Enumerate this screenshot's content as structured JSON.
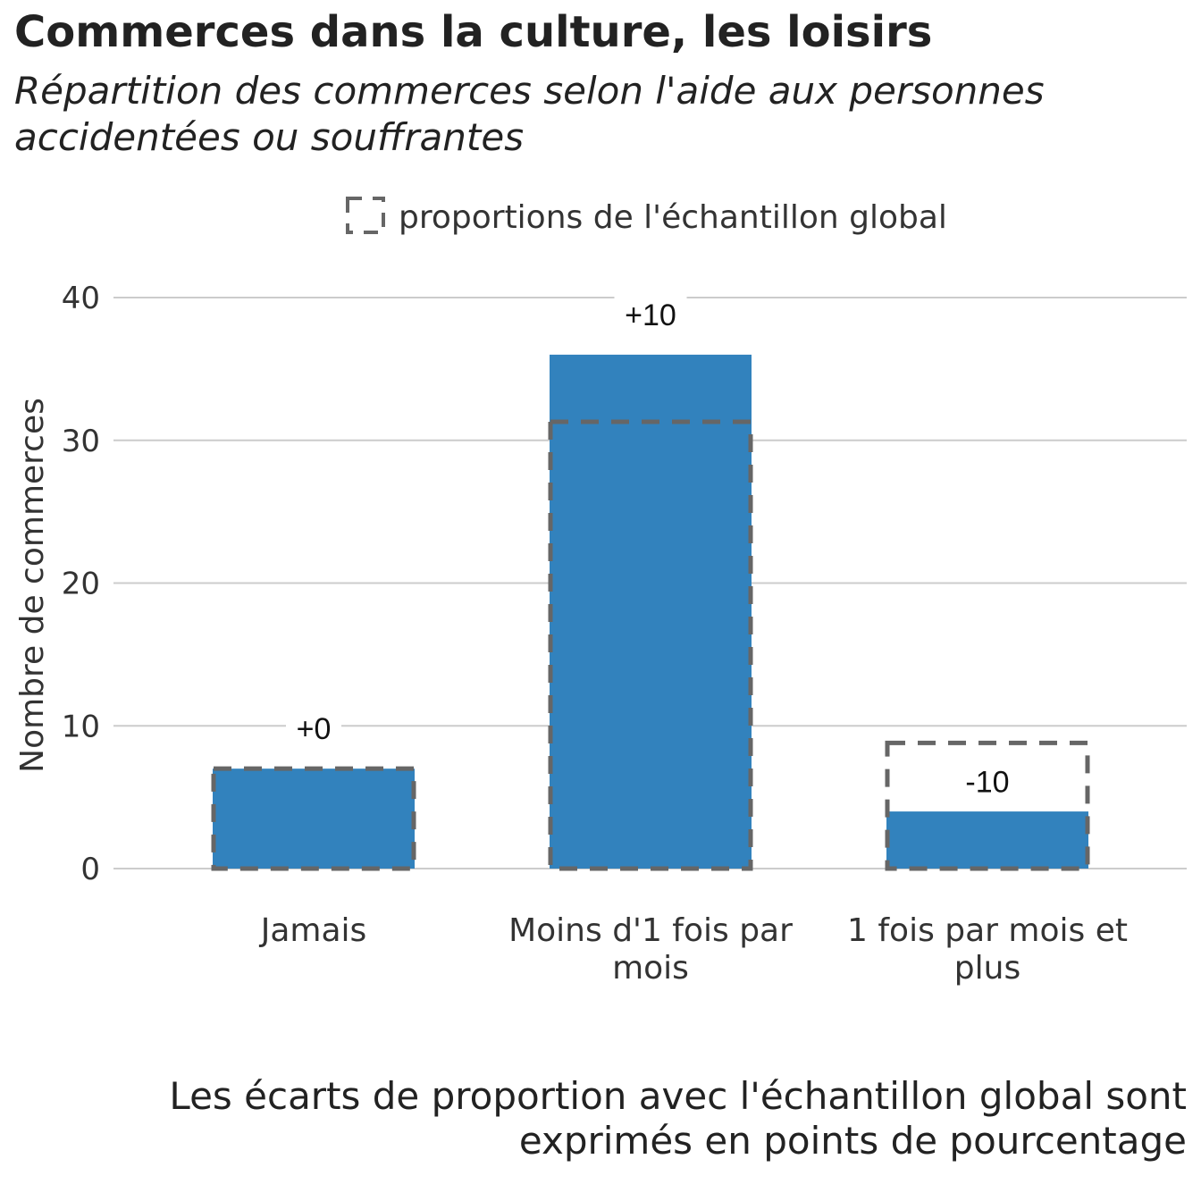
{
  "chart_data": {
    "type": "bar",
    "title": "Commerces dans la culture, les loisirs",
    "subtitle": "Répartition des commerces selon l'aide aux personnes accidentées ou souffrantes",
    "ylabel": "Nombre de commerces",
    "xlabel": "",
    "ylim": [
      0,
      40
    ],
    "yticks": [
      0,
      10,
      20,
      30,
      40
    ],
    "grid": true,
    "legend": {
      "label": "proportions de l'échantillon global",
      "placement": "top"
    },
    "categories": [
      {
        "lines": [
          "Jamais"
        ],
        "value": 7,
        "reference": 7,
        "delta_label": "+0"
      },
      {
        "lines": [
          "Moins d'1 fois par",
          "mois"
        ],
        "value": 36,
        "reference": 31.3,
        "delta_label": "+10"
      },
      {
        "lines": [
          "1 fois par mois et",
          "plus"
        ],
        "value": 4,
        "reference": 8.8,
        "delta_label": "-10"
      }
    ],
    "caption_lines": [
      "Les écarts de proportion avec l'échantillon global sont",
      "exprimés en points de pourcentage"
    ],
    "colors": {
      "bar": "#3282BD",
      "reference_outline": "#666666",
      "grid": "#CCCCCC"
    }
  }
}
